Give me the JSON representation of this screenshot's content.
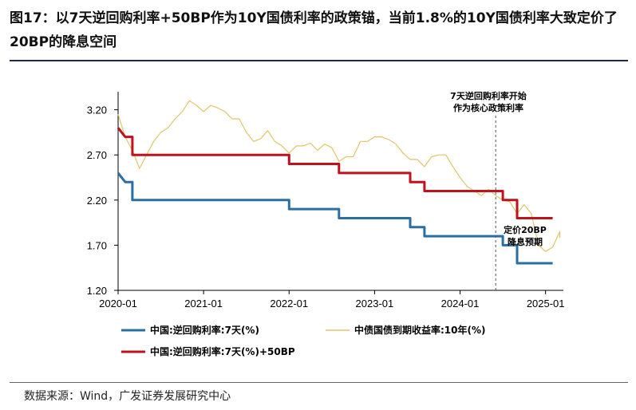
{
  "title": "图17：以7天逆回购利率+50BP作为10Y国债利率的政策锚，当前1.8%的10Y国债利率大致定价了20BP的降息空间",
  "source": "数据来源：Wind，广发证券发展研究中心",
  "colors": {
    "repo": "#2a6fa3",
    "repo_plus": "#c0111f",
    "bond": "#e2c46a"
  },
  "chart_data": {
    "type": "line",
    "title": "",
    "xlabel": "",
    "ylabel": "",
    "x_ticks": [
      "2020-01",
      "2021-01",
      "2022-01",
      "2023-01",
      "2024-01",
      "2025-01"
    ],
    "y_ticks": [
      "1.20",
      "1.70",
      "2.20",
      "2.70",
      "3.20"
    ],
    "ylim": [
      1.2,
      3.4
    ],
    "legend_position": "bottom",
    "annotations": [
      {
        "text": [
          "7天逆回购利率开始",
          "作为核心政策利率"
        ],
        "x": "2024-06"
      },
      {
        "text": [
          "定价20BP",
          "降息预期"
        ],
        "x": "2024-11"
      }
    ],
    "series": [
      {
        "name": "中国:逆回购利率:7天(%)",
        "color": "#2a6fa3",
        "points": [
          [
            "2020-01",
            2.5
          ],
          [
            "2020-02",
            2.4
          ],
          [
            "2020-03",
            2.4
          ],
          [
            "2020-03",
            2.2
          ],
          [
            "2022-01",
            2.2
          ],
          [
            "2022-01",
            2.1
          ],
          [
            "2022-08",
            2.1
          ],
          [
            "2022-08",
            2.0
          ],
          [
            "2023-06",
            2.0
          ],
          [
            "2023-06",
            1.9
          ],
          [
            "2023-08",
            1.9
          ],
          [
            "2023-08",
            1.8
          ],
          [
            "2024-07",
            1.8
          ],
          [
            "2024-07",
            1.7
          ],
          [
            "2024-09",
            1.7
          ],
          [
            "2024-09",
            1.5
          ],
          [
            "2025-02",
            1.5
          ]
        ]
      },
      {
        "name": "中债国债到期收益率:10年(%)",
        "color": "#e2c46a",
        "points": [
          [
            "2020-01",
            3.15
          ],
          [
            "2020-02",
            2.9
          ],
          [
            "2020-03",
            2.75
          ],
          [
            "2020-04",
            2.55
          ],
          [
            "2020-05",
            2.7
          ],
          [
            "2020-06",
            2.85
          ],
          [
            "2020-07",
            2.95
          ],
          [
            "2020-08",
            3.0
          ],
          [
            "2020-09",
            3.1
          ],
          [
            "2020-10",
            3.18
          ],
          [
            "2020-11",
            3.3
          ],
          [
            "2020-12",
            3.25
          ],
          [
            "2021-01",
            3.18
          ],
          [
            "2021-02",
            3.25
          ],
          [
            "2021-03",
            3.22
          ],
          [
            "2021-04",
            3.18
          ],
          [
            "2021-05",
            3.1
          ],
          [
            "2021-06",
            3.1
          ],
          [
            "2021-07",
            2.95
          ],
          [
            "2021-08",
            2.85
          ],
          [
            "2021-09",
            2.88
          ],
          [
            "2021-10",
            2.97
          ],
          [
            "2021-11",
            2.85
          ],
          [
            "2021-12",
            2.8
          ],
          [
            "2022-01",
            2.72
          ],
          [
            "2022-02",
            2.8
          ],
          [
            "2022-03",
            2.8
          ],
          [
            "2022-04",
            2.83
          ],
          [
            "2022-05",
            2.75
          ],
          [
            "2022-06",
            2.82
          ],
          [
            "2022-07",
            2.78
          ],
          [
            "2022-08",
            2.63
          ],
          [
            "2022-09",
            2.68
          ],
          [
            "2022-10",
            2.68
          ],
          [
            "2022-11",
            2.85
          ],
          [
            "2022-12",
            2.85
          ],
          [
            "2023-01",
            2.9
          ],
          [
            "2023-02",
            2.9
          ],
          [
            "2023-03",
            2.87
          ],
          [
            "2023-04",
            2.82
          ],
          [
            "2023-05",
            2.72
          ],
          [
            "2023-06",
            2.65
          ],
          [
            "2023-07",
            2.65
          ],
          [
            "2023-08",
            2.57
          ],
          [
            "2023-09",
            2.68
          ],
          [
            "2023-10",
            2.7
          ],
          [
            "2023-11",
            2.7
          ],
          [
            "2023-12",
            2.57
          ],
          [
            "2024-01",
            2.45
          ],
          [
            "2024-02",
            2.35
          ],
          [
            "2024-03",
            2.3
          ],
          [
            "2024-04",
            2.25
          ],
          [
            "2024-05",
            2.32
          ],
          [
            "2024-06",
            2.25
          ],
          [
            "2024-07",
            2.2
          ],
          [
            "2024-08",
            2.18
          ],
          [
            "2024-09",
            2.05
          ],
          [
            "2024-10",
            2.15
          ],
          [
            "2024-11",
            2.05
          ],
          [
            "2024-12",
            1.7
          ],
          [
            "2025-01",
            1.63
          ],
          [
            "2025-02",
            1.68
          ],
          [
            "2025-03",
            1.85
          ],
          [
            "2025-03",
            1.78
          ]
        ]
      },
      {
        "name": "中国:逆回购利率:7天(%)+50BP",
        "color": "#c0111f",
        "points": [
          [
            "2020-01",
            3.0
          ],
          [
            "2020-02",
            2.9
          ],
          [
            "2020-03",
            2.9
          ],
          [
            "2020-03",
            2.7
          ],
          [
            "2022-01",
            2.7
          ],
          [
            "2022-01",
            2.6
          ],
          [
            "2022-08",
            2.6
          ],
          [
            "2022-08",
            2.5
          ],
          [
            "2023-06",
            2.5
          ],
          [
            "2023-06",
            2.4
          ],
          [
            "2023-08",
            2.4
          ],
          [
            "2023-08",
            2.3
          ],
          [
            "2024-07",
            2.3
          ],
          [
            "2024-07",
            2.2
          ],
          [
            "2024-09",
            2.2
          ],
          [
            "2024-09",
            2.0
          ],
          [
            "2025-02",
            2.0
          ]
        ]
      }
    ]
  }
}
